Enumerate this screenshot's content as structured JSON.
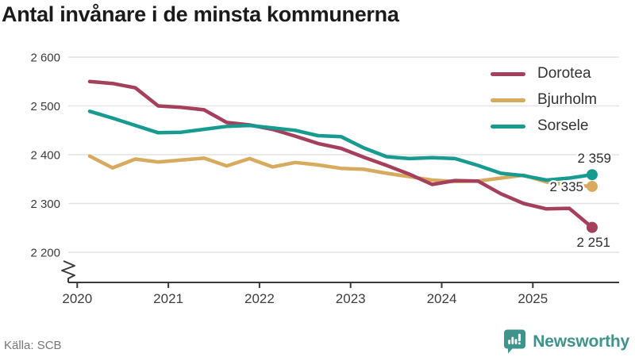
{
  "title": "Antal invånare i de minsta kommunerna",
  "source": "Källa: SCB",
  "brand": {
    "name": "Newsworthy",
    "color": "#3e938b",
    "icon": "newsworthy-badge-icon"
  },
  "colors": {
    "dorotea": "#a5405c",
    "bjurholm": "#d7aa5e",
    "sorsele": "#179a90",
    "axis": "#3a3a3a",
    "grid": "#e4e4e4",
    "tick_text": "#3d3d3d",
    "end_label_text": "#2d2d2d",
    "muted_text": "#767676"
  },
  "chart_data": {
    "type": "line",
    "title": "Antal invånare i de minsta kommunerna",
    "xlabel": "",
    "ylabel": "",
    "x_ticks": [
      2020,
      2021,
      2022,
      2023,
      2024,
      2025
    ],
    "y_ticks": [
      2200,
      2300,
      2400,
      2500,
      2600
    ],
    "y_tick_labels": [
      "2 200",
      "2 300",
      "2 400",
      "2 500",
      "2 600"
    ],
    "ylim": [
      2200,
      2600
    ],
    "axis_break": true,
    "grid": "horizontal",
    "legend_position": "top-right",
    "periods": [
      "2020-Q1",
      "2020-Q2",
      "2020-Q3",
      "2020-Q4",
      "2021-Q1",
      "2021-Q2",
      "2021-Q3",
      "2021-Q4",
      "2022-Q1",
      "2022-Q2",
      "2022-Q3",
      "2022-Q4",
      "2023-Q1",
      "2023-Q2",
      "2023-Q3",
      "2023-Q4",
      "2024-Q1",
      "2024-Q2",
      "2024-Q3",
      "2024-Q4",
      "2025-Q1",
      "2025-Q2",
      "2025-Q3"
    ],
    "series": [
      {
        "name": "Dorotea",
        "color": "#a5405c",
        "end_value": 2251,
        "end_label": "2 251",
        "values": [
          2550,
          2546,
          2537,
          2500,
          2497,
          2492,
          2466,
          2461,
          2452,
          2438,
          2423,
          2413,
          2395,
          2378,
          2360,
          2339,
          2347,
          2346,
          2320,
          2300,
          2289,
          2290,
          2251
        ]
      },
      {
        "name": "Bjurholm",
        "color": "#d7aa5e",
        "end_value": 2335,
        "end_label": "2 335",
        "values": [
          2397,
          2373,
          2391,
          2385,
          2389,
          2393,
          2377,
          2392,
          2375,
          2384,
          2379,
          2372,
          2370,
          2362,
          2355,
          2348,
          2345,
          2346,
          2352,
          2358,
          2344,
          2338,
          2335
        ]
      },
      {
        "name": "Sorsele",
        "color": "#179a90",
        "end_value": 2359,
        "end_label": "2 359",
        "values": [
          2489,
          2475,
          2460,
          2445,
          2446,
          2452,
          2458,
          2460,
          2455,
          2450,
          2439,
          2437,
          2414,
          2396,
          2392,
          2394,
          2392,
          2378,
          2362,
          2357,
          2348,
          2352,
          2359
        ]
      }
    ]
  }
}
